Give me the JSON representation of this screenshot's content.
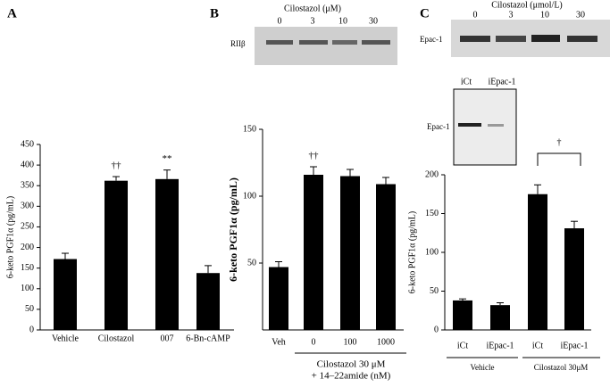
{
  "chart_data": [
    {
      "type": "bar",
      "panel": "A",
      "ylabel": "6-keto PGF1α (pg/mL)",
      "categories": [
        "Vehicle",
        "Cilostazol",
        "007",
        "6-Bn-cAMP"
      ],
      "values": [
        172,
        362,
        366,
        138
      ],
      "errors": [
        14,
        10,
        22,
        18
      ],
      "annotations": [
        null,
        "††",
        "**",
        null
      ],
      "color": "#000000",
      "ylim": [
        0,
        450
      ],
      "yticks": [
        0,
        50,
        100,
        150,
        200,
        250,
        300,
        350,
        400,
        450
      ]
    },
    {
      "type": "bar",
      "panel": "B",
      "ylabel": "6-keto PGF1α (pg/mL)",
      "categories": [
        "Veh",
        "0",
        "100",
        "1000"
      ],
      "values": [
        47,
        116,
        115,
        109
      ],
      "errors": [
        4,
        6,
        5,
        5
      ],
      "annotations": [
        null,
        "††",
        null,
        null
      ],
      "color": "#000000",
      "x_groups": [
        "Cilostazol 30 μM",
        "+ 14–22amide (nM)"
      ],
      "blots": [
        {
          "title": "Cilostazol (μM)",
          "lanes": [
            "0",
            "3",
            "10",
            "30"
          ],
          "label": "RIIβ"
        }
      ],
      "ylim": [
        0,
        150
      ],
      "yticks": [
        50,
        100,
        150
      ]
    },
    {
      "type": "bar",
      "panel": "C",
      "ylabel": "6-keto PGF1α (pg/mL)",
      "categories": [
        "iCt",
        "iEpac-1",
        "iCt",
        "iEpac-1"
      ],
      "values": [
        38,
        32,
        175,
        131
      ],
      "errors": [
        2,
        3,
        12,
        9
      ],
      "comparison": "†",
      "color": "#000000",
      "x_groups": [
        "Vehicle",
        "Cilostazol 30μM"
      ],
      "blots": [
        {
          "title": "Cilostazol (μmol/L)",
          "lanes": [
            "0",
            "3",
            "10",
            "30"
          ],
          "label": "Epac-1"
        },
        {
          "lanes": [
            "iCt",
            "iEpac-1"
          ],
          "label": "Epac-1"
        }
      ],
      "ylim": [
        0,
        200
      ],
      "yticks": [
        0,
        50,
        100,
        150,
        200
      ]
    }
  ]
}
